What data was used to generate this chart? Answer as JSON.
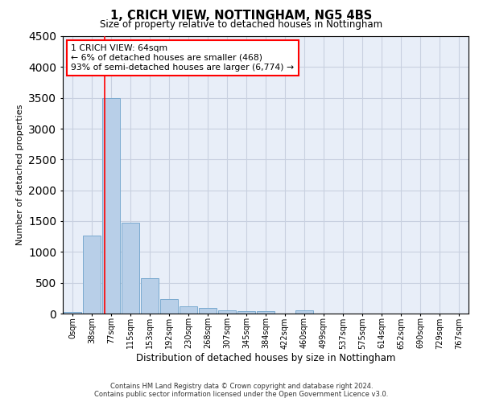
{
  "title": "1, CRICH VIEW, NOTTINGHAM, NG5 4BS",
  "subtitle": "Size of property relative to detached houses in Nottingham",
  "xlabel": "Distribution of detached houses by size in Nottingham",
  "ylabel": "Number of detached properties",
  "bar_labels": [
    "0sqm",
    "38sqm",
    "77sqm",
    "115sqm",
    "153sqm",
    "192sqm",
    "230sqm",
    "268sqm",
    "307sqm",
    "345sqm",
    "384sqm",
    "422sqm",
    "460sqm",
    "499sqm",
    "537sqm",
    "575sqm",
    "614sqm",
    "652sqm",
    "690sqm",
    "729sqm",
    "767sqm"
  ],
  "bar_values": [
    30,
    1270,
    3500,
    1480,
    575,
    235,
    115,
    85,
    55,
    40,
    35,
    0,
    55,
    0,
    0,
    0,
    0,
    0,
    0,
    0,
    0
  ],
  "bar_color": "#b8cfe8",
  "bar_edgecolor": "#7aaad0",
  "ylim": [
    0,
    4500
  ],
  "yticks": [
    0,
    500,
    1000,
    1500,
    2000,
    2500,
    3000,
    3500,
    4000,
    4500
  ],
  "red_line_x": 1.67,
  "annotation_title": "1 CRICH VIEW: 64sqm",
  "annotation_line1": "← 6% of detached houses are smaller (468)",
  "annotation_line2": "93% of semi-detached houses are larger (6,774) →",
  "footer1": "Contains HM Land Registry data © Crown copyright and database right 2024.",
  "footer2": "Contains public sector information licensed under the Open Government Licence v3.0.",
  "bg_color": "#e8eef8",
  "grid_color": "#c8d0e0"
}
